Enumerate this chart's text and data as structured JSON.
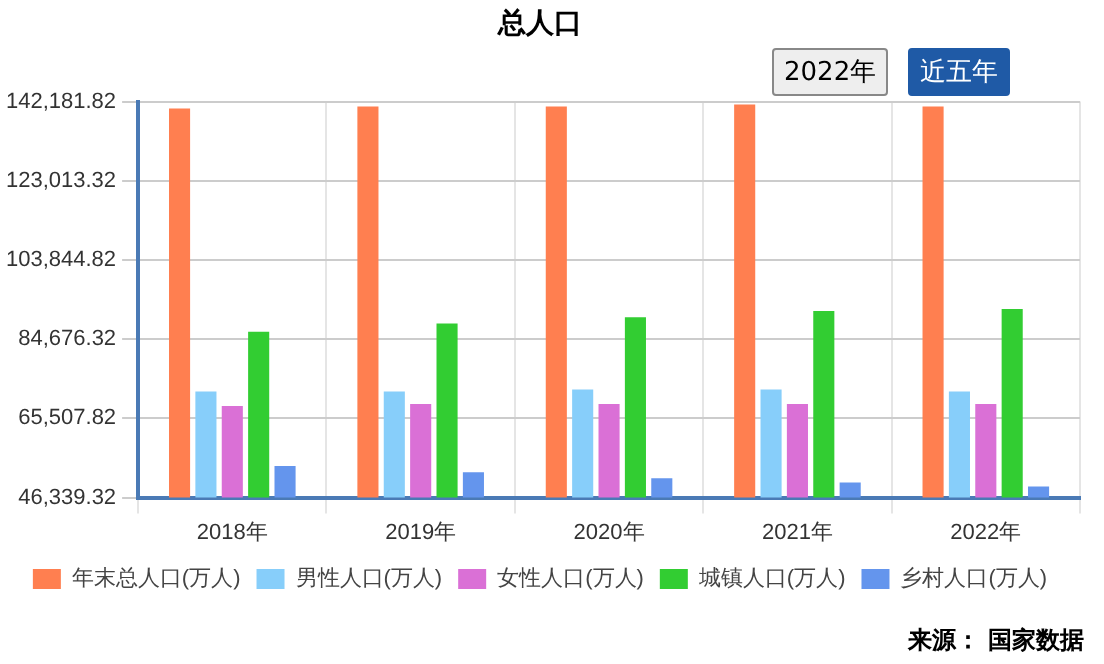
{
  "chart_data": {
    "type": "bar",
    "title": "总人口",
    "categories": [
      "2018年",
      "2019年",
      "2020年",
      "2021年",
      "2022年"
    ],
    "series": [
      {
        "name": "年末总人口(万人)",
        "color": "#ff7f50",
        "values": [
          140500,
          141000,
          141000,
          141500,
          141000
        ]
      },
      {
        "name": "男性人口(万人)",
        "color": "#87cefa",
        "values": [
          72000,
          72000,
          72500,
          72500,
          72000
        ]
      },
      {
        "name": "女性人口(万人)",
        "color": "#da70d6",
        "values": [
          68500,
          69000,
          69000,
          69000,
          69000
        ]
      },
      {
        "name": "城镇人口(万人)",
        "color": "#32cd32",
        "values": [
          86500,
          88500,
          90000,
          91500,
          92000
        ]
      },
      {
        "name": "乡村人口(万人)",
        "color": "#6495ed",
        "values": [
          54000,
          52500,
          51000,
          50000,
          49000
        ]
      }
    ],
    "ylim": [
      46339.32,
      142181.82
    ],
    "yticks": [
      {
        "value": 46339.32,
        "label": "46,339.32"
      },
      {
        "value": 65507.82,
        "label": "65,507.82"
      },
      {
        "value": 84676.32,
        "label": "84,676.32"
      },
      {
        "value": 103844.82,
        "label": "103,844.82"
      },
      {
        "value": 123013.32,
        "label": "123,013.32"
      },
      {
        "value": 142181.82,
        "label": "142,181.82"
      }
    ],
    "grid": true,
    "legend": "bottom",
    "annotations": [
      "2022年",
      "近五年",
      "来源： 国家数据"
    ]
  }
}
